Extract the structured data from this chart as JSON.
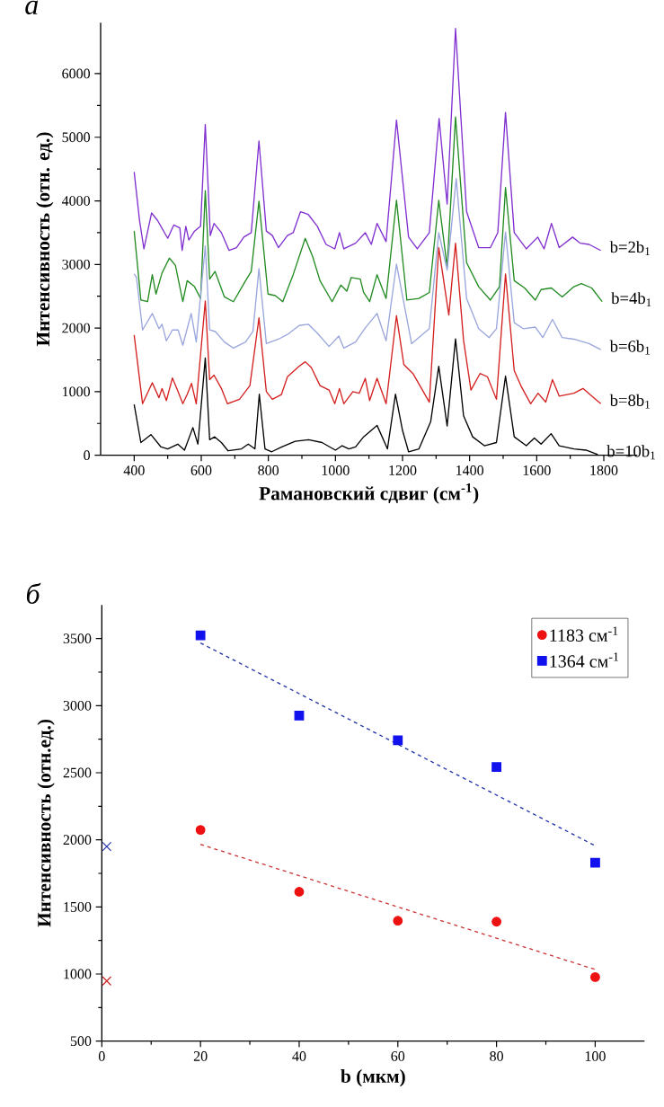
{
  "chart_data": [
    {
      "type": "line",
      "title": "а",
      "xlabel": "Рамановский сдвиг (см$^{-1}$)",
      "ylabel": "Интенсивность (отн. ед.)",
      "xlim": [
        300,
        1900
      ],
      "ylim": [
        0,
        6800
      ],
      "xticks": [
        400,
        600,
        800,
        1000,
        1200,
        1400,
        1600,
        1800
      ],
      "yticks": [
        0,
        1000,
        2000,
        3000,
        4000,
        5000,
        6000
      ],
      "series": [
        {
          "name": "b=2b$_{1}$",
          "color": "#8030d0",
          "x": [
            400,
            416,
            429,
            452,
            470,
            500,
            518,
            536,
            543,
            554,
            563,
            580,
            598,
            612,
            627,
            638,
            660,
            683,
            705,
            727,
            749,
            772,
            794,
            812,
            830,
            857,
            874,
            896,
            919,
            946,
            972,
            998,
            1012,
            1025,
            1060,
            1089,
            1107,
            1124,
            1151,
            1182,
            1218,
            1244,
            1280,
            1309,
            1333,
            1358,
            1391,
            1427,
            1462,
            1484,
            1507,
            1533,
            1569,
            1603,
            1622,
            1644,
            1667,
            1707,
            1729,
            1756,
            1791
          ],
          "values": [
            4455,
            3690,
            3245,
            3810,
            3690,
            3410,
            3620,
            3575,
            3220,
            3600,
            3385,
            3525,
            3600,
            5200,
            3455,
            3645,
            3500,
            3220,
            3265,
            3430,
            3500,
            4940,
            3525,
            3455,
            3265,
            3455,
            3500,
            3830,
            3785,
            3600,
            3315,
            3245,
            3500,
            3245,
            3335,
            3500,
            3315,
            3645,
            3360,
            5270,
            3430,
            3245,
            3500,
            5295,
            3950,
            6710,
            3830,
            3265,
            3265,
            3500,
            5390,
            3500,
            3245,
            3430,
            3245,
            3645,
            3265,
            3430,
            3335,
            3315,
            3220
          ]
        },
        {
          "name": "b=4b$_{1}$",
          "color": "#228b22",
          "x": [
            400,
            420,
            440,
            454,
            465,
            483,
            505,
            523,
            545,
            558,
            580,
            598,
            612,
            625,
            641,
            669,
            696,
            727,
            749,
            772,
            799,
            821,
            843,
            874,
            910,
            932,
            954,
            990,
            1016,
            1034,
            1047,
            1074,
            1084,
            1102,
            1124,
            1151,
            1182,
            1213,
            1249,
            1280,
            1308,
            1333,
            1358,
            1391,
            1427,
            1462,
            1489,
            1507,
            1533,
            1564,
            1596,
            1613,
            1644,
            1676,
            1711,
            1733,
            1764,
            1795
          ],
          "values": [
            3525,
            2440,
            2415,
            2840,
            2535,
            2865,
            3100,
            2985,
            2415,
            2745,
            2650,
            2465,
            4160,
            2770,
            2890,
            2490,
            2415,
            2700,
            2890,
            3995,
            2535,
            2510,
            2415,
            2840,
            3410,
            3125,
            2745,
            2415,
            2675,
            2580,
            2795,
            2770,
            2560,
            2415,
            2840,
            2465,
            4010,
            2440,
            2465,
            2560,
            4010,
            2960,
            5320,
            3030,
            2650,
            2440,
            2650,
            4210,
            2745,
            2630,
            2440,
            2605,
            2630,
            2490,
            2650,
            2700,
            2630,
            2415
          ]
        },
        {
          "name": "b=6b$_{1}$",
          "color": "#9aa6dc",
          "x": [
            400,
            407,
            425,
            454,
            474,
            483,
            496,
            514,
            531,
            545,
            570,
            585,
            612,
            625,
            642,
            669,
            696,
            732,
            754,
            772,
            794,
            830,
            857,
            892,
            919,
            946,
            981,
            1010,
            1025,
            1060,
            1087,
            1124,
            1151,
            1182,
            1227,
            1280,
            1308,
            1333,
            1360,
            1391,
            1427,
            1458,
            1480,
            1507,
            1533,
            1560,
            1596,
            1618,
            1647,
            1676,
            1711,
            1756,
            1791
          ],
          "values": [
            2850,
            2795,
            1970,
            2230,
            1990,
            2060,
            1800,
            1970,
            1970,
            1730,
            2230,
            1780,
            3290,
            1970,
            1945,
            1780,
            1685,
            1780,
            1945,
            2935,
            1755,
            1825,
            1900,
            2040,
            2060,
            1920,
            1710,
            1875,
            1685,
            1780,
            1990,
            2230,
            1800,
            3005,
            1755,
            1990,
            3500,
            2910,
            4350,
            2465,
            1990,
            1850,
            1990,
            3510,
            2085,
            1990,
            2015,
            1850,
            2135,
            1850,
            1825,
            1755,
            1660
          ]
        },
        {
          "name": "b=8b$_{1}$",
          "color": "#d42020",
          "x": [
            400,
            425,
            454,
            474,
            483,
            496,
            514,
            527,
            545,
            558,
            571,
            585,
            612,
            625,
            638,
            660,
            678,
            714,
            745,
            772,
            794,
            812,
            839,
            857,
            892,
            910,
            928,
            954,
            981,
            998,
            1012,
            1025,
            1052,
            1071,
            1089,
            1102,
            1124,
            1151,
            1182,
            1204,
            1231,
            1280,
            1308,
            1338,
            1358,
            1382,
            1404,
            1431,
            1453,
            1480,
            1507,
            1533,
            1555,
            1582,
            1604,
            1627,
            1647,
            1667,
            1711,
            1738,
            1764,
            1791
          ],
          "values": [
            1890,
            810,
            1140,
            905,
            1050,
            860,
            1215,
            1050,
            810,
            955,
            1130,
            810,
            2425,
            1190,
            1260,
            1050,
            810,
            880,
            1095,
            2160,
            1000,
            880,
            955,
            1235,
            1400,
            1470,
            1380,
            1095,
            1025,
            810,
            1050,
            810,
            1000,
            975,
            1210,
            860,
            1210,
            810,
            2195,
            1425,
            1285,
            835,
            3265,
            2205,
            3335,
            1805,
            1025,
            1285,
            1235,
            880,
            2850,
            1330,
            1070,
            810,
            975,
            835,
            1190,
            930,
            975,
            1050,
            930,
            810
          ]
        },
        {
          "name": "b=10b$_{1}$",
          "color": "#000000",
          "x": [
            400,
            420,
            450,
            480,
            500,
            530,
            550,
            575,
            590,
            612,
            625,
            640,
            660,
            680,
            720,
            740,
            760,
            773,
            790,
            810,
            840,
            880,
            920,
            960,
            1000,
            1020,
            1040,
            1060,
            1084,
            1124,
            1155,
            1179,
            1200,
            1218,
            1249,
            1284,
            1308,
            1333,
            1358,
            1382,
            1409,
            1444,
            1480,
            1507,
            1533,
            1569,
            1593,
            1613,
            1643,
            1667,
            1711,
            1747,
            1782
          ],
          "values": [
            800,
            200,
            325,
            130,
            100,
            175,
            80,
            435,
            175,
            1530,
            245,
            290,
            200,
            70,
            100,
            175,
            100,
            960,
            100,
            55,
            130,
            220,
            245,
            200,
            80,
            150,
            100,
            130,
            290,
            470,
            100,
            960,
            390,
            55,
            100,
            530,
            1400,
            460,
            1830,
            620,
            290,
            150,
            200,
            1245,
            290,
            150,
            270,
            175,
            340,
            150,
            100,
            80,
            10
          ]
        }
      ]
    },
    {
      "type": "scatter",
      "title": "б",
      "xlabel": "b (мкм)",
      "ylabel": "Интенсивность (отн.ед.)",
      "xlim": [
        0,
        110
      ],
      "ylim": [
        500,
        3750
      ],
      "xticks": [
        0,
        20,
        40,
        60,
        80,
        100
      ],
      "yticks": [
        500,
        1000,
        1500,
        2000,
        2500,
        3000,
        3500
      ],
      "legend": "top right",
      "series": [
        {
          "name": "1183 см$^{-1}$",
          "color": "#ee1111",
          "marker": "circle",
          "x": [
            20,
            40,
            60,
            80,
            100
          ],
          "values": [
            2074,
            1613,
            1397,
            1390,
            977
          ]
        },
        {
          "name": "1364 см$^{-1}$",
          "color": "#1111ee",
          "marker": "square",
          "x": [
            20,
            40,
            60,
            80,
            100
          ],
          "values": [
            3524,
            2926,
            2742,
            2542,
            1829
          ]
        },
        {
          "type": "line",
          "line_style": "dashed",
          "color": "#cc3333",
          "x": [
            20,
            100
          ],
          "values": [
            1966,
            1034
          ]
        },
        {
          "type": "line",
          "line_style": "dashed",
          "color": "#2233aa",
          "x": [
            20,
            100
          ],
          "values": [
            3467,
            1956
          ]
        },
        {
          "marker": "cross",
          "color": "#cc2222",
          "x": [
            1
          ],
          "values": [
            948
          ]
        },
        {
          "marker": "cross",
          "color": "#2233aa",
          "x": [
            1
          ],
          "values": [
            1950
          ]
        }
      ]
    }
  ]
}
